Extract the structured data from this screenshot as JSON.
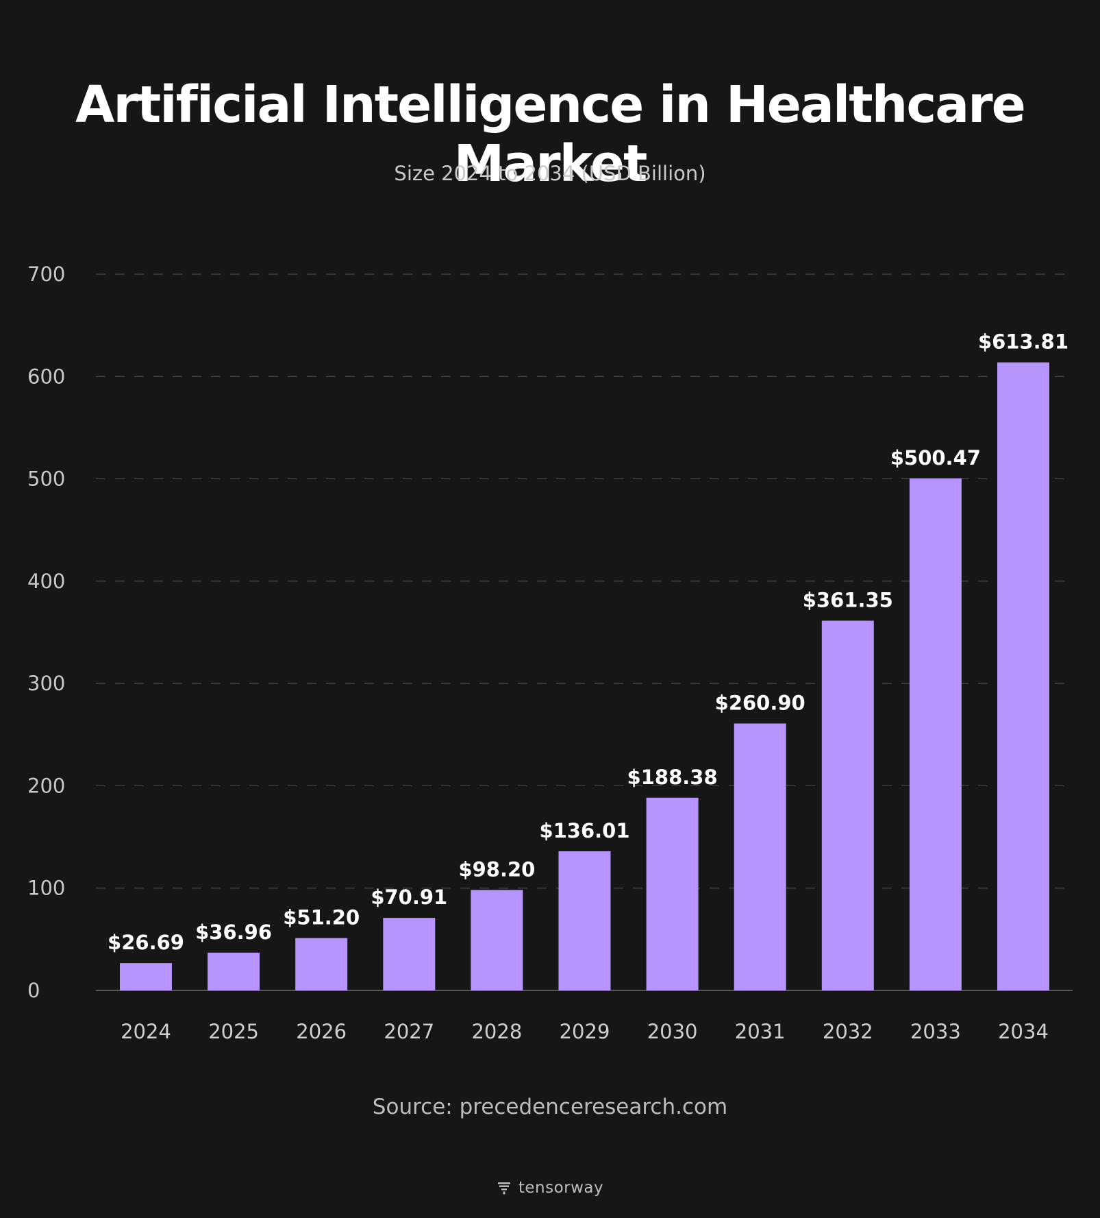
{
  "chart_data": {
    "type": "bar",
    "title": "Artificial Intelligence in Healthcare Market",
    "subtitle": "Size 2024 to 2034 (USD Billion)",
    "categories": [
      "2024",
      "2025",
      "2026",
      "2027",
      "2028",
      "2029",
      "2030",
      "2031",
      "2032",
      "2033",
      "2034"
    ],
    "values": [
      26.69,
      36.96,
      51.2,
      70.91,
      98.2,
      136.01,
      188.38,
      260.9,
      361.35,
      500.47,
      613.81
    ],
    "data_labels": [
      "$26.69",
      "$36.96",
      "$51.20",
      "$70.91",
      "$98.20",
      "$136.01",
      "$188.38",
      "$260.90",
      "$361.35",
      "$500.47",
      "$613.81"
    ],
    "yticks": [
      0,
      100,
      200,
      300,
      400,
      500,
      600,
      700
    ],
    "ylim": [
      0,
      700
    ],
    "grid": true,
    "bar_color": "#b595fc",
    "background": "#161616"
  },
  "footer": {
    "source": "Source: precedenceresearch.com",
    "brand": "tensorway",
    "brand_icon": "tensorway-logo-icon"
  }
}
